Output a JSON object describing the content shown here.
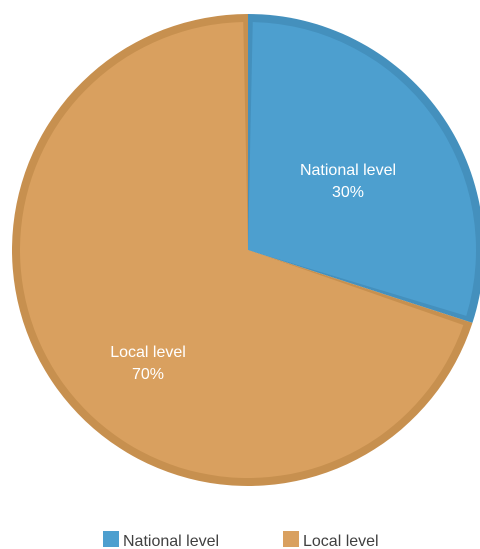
{
  "chart_data": {
    "type": "pie",
    "categories": [
      "National level",
      "Local level"
    ],
    "values": [
      30,
      70
    ],
    "labels": [
      "National level\n30%",
      "Local level\n70%"
    ],
    "colors": [
      "#4d9fcf",
      "#d9a05f"
    ],
    "legend_position": "bottom",
    "grid": false
  }
}
